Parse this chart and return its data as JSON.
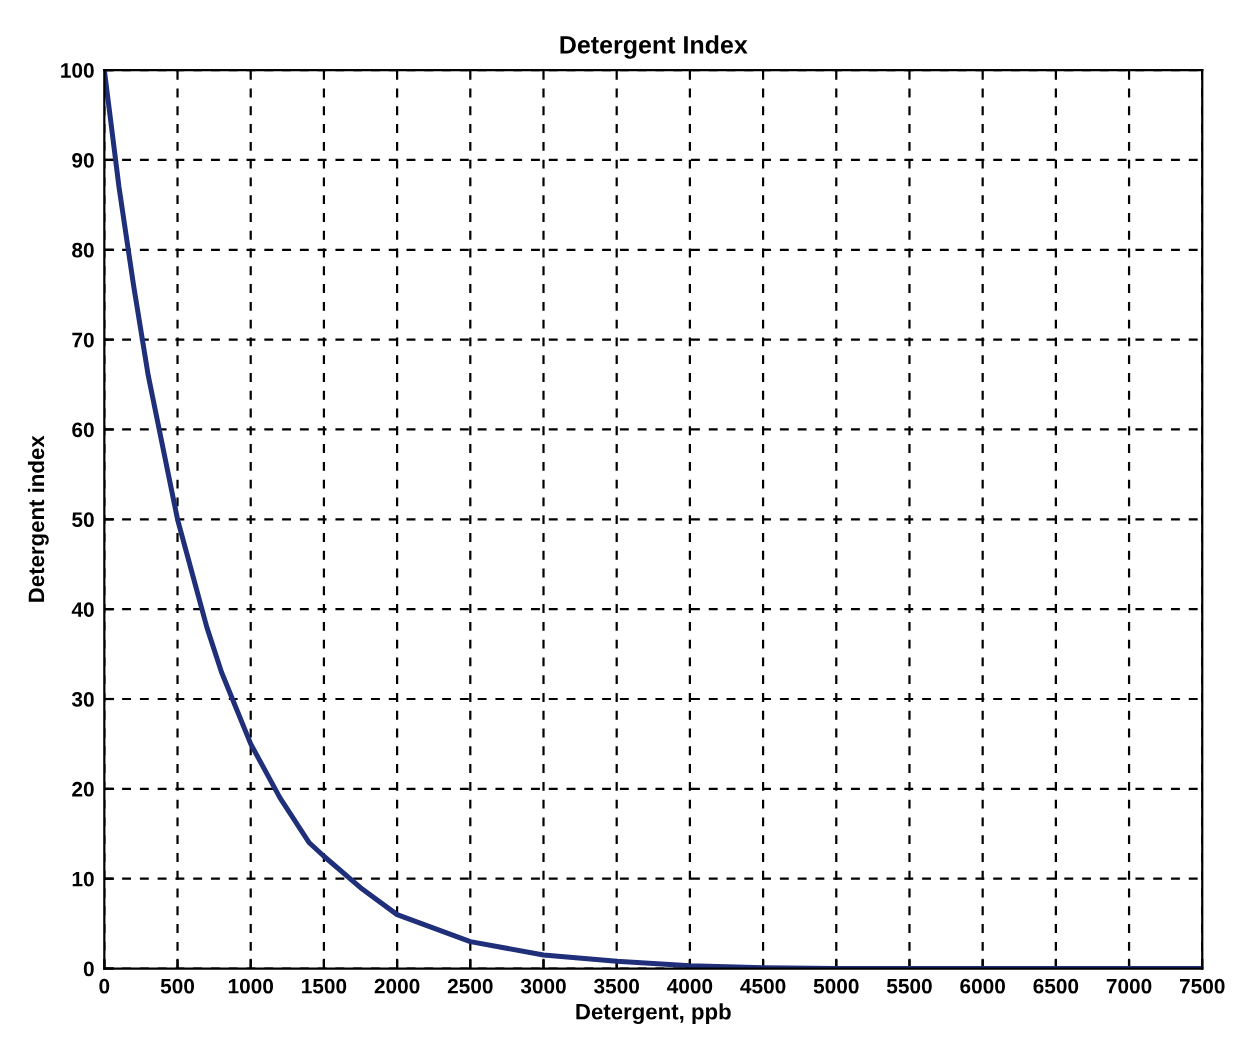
{
  "chart_data": {
    "type": "line",
    "title": "Detergent Index",
    "xlabel": "Detergent, ppb",
    "ylabel": "Detergent index",
    "x": [
      0,
      100,
      200,
      300,
      400,
      500,
      600,
      700,
      800,
      900,
      1000,
      1200,
      1400,
      1500,
      1750,
      2000,
      2250,
      2500,
      3000,
      3500,
      4000,
      4500,
      5000,
      5500,
      6000,
      6500,
      7000,
      7500
    ],
    "series": [
      {
        "color": "#1f2f7a",
        "values": [
          100,
          87,
          76,
          66,
          58,
          50,
          44,
          38,
          33,
          29,
          25,
          19,
          14,
          12.5,
          9,
          6,
          4.5,
          3,
          1.5,
          0.8,
          0.3,
          0.1,
          0,
          0,
          0,
          0,
          0,
          0
        ]
      }
    ],
    "xlim": [
      0,
      7500
    ],
    "ylim": [
      0,
      100
    ],
    "xticks": [
      0,
      500,
      1000,
      1500,
      2000,
      2500,
      3000,
      3500,
      4000,
      4500,
      5000,
      5500,
      6000,
      6500,
      7000,
      7500
    ],
    "yticks": [
      0,
      10,
      20,
      30,
      40,
      50,
      60,
      70,
      80,
      90,
      100
    ],
    "grid": true,
    "line_style": "solid",
    "marker": "none"
  }
}
